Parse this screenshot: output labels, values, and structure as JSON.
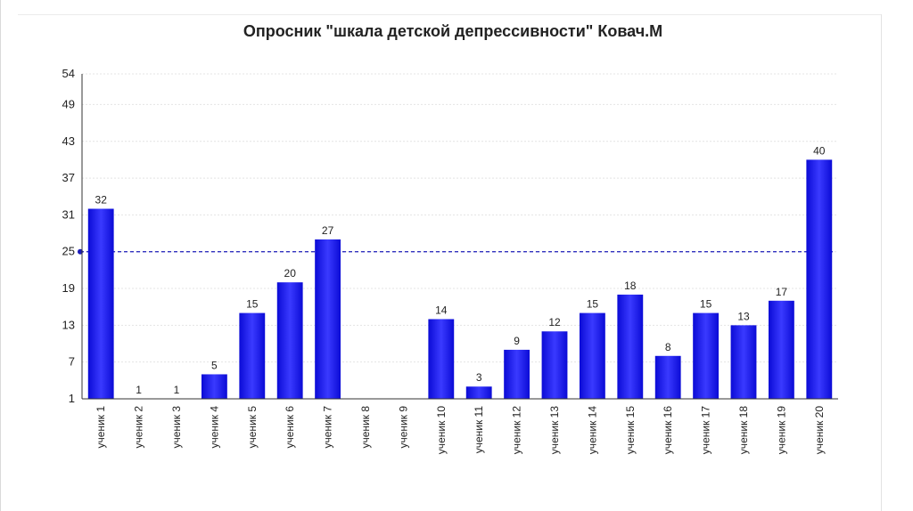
{
  "chart_data": {
    "type": "bar",
    "title": "Опросник \"шкала детской депрессивности\" Ковач.М",
    "categories": [
      "ученик 1",
      "ученик 2",
      "ученик 3",
      "ученик 4",
      "ученик 5",
      "ученик 6",
      "ученик 7",
      "ученик 8",
      "ученик 9",
      "ученик 10",
      "ученик 11",
      "ученик 12",
      "ученик 13",
      "ученик 14",
      "ученик 15",
      "ученик 16",
      "ученик 17",
      "ученик 18",
      "ученик 19",
      "ученик 20"
    ],
    "values": [
      32,
      1,
      1,
      5,
      15,
      20,
      27,
      null,
      null,
      14,
      3,
      9,
      12,
      15,
      18,
      8,
      15,
      13,
      17,
      40
    ],
    "data_labels": [
      "32",
      "1",
      "1",
      "5",
      "15",
      "20",
      "27",
      "",
      "",
      "14",
      "3",
      "9",
      "12",
      "15",
      "18",
      "8",
      "15",
      "13",
      "17",
      "40"
    ],
    "y_ticks": [
      "1",
      "7",
      "13",
      "19",
      "25",
      "31",
      "37",
      "43",
      "49",
      "54"
    ],
    "ylim": [
      1,
      54
    ],
    "reference_line": 25,
    "grid": true,
    "bar_color": "#0b0bd6",
    "bar_highlight_color": "#3a3aff",
    "reference_line_color": "#1a1ab8",
    "axis_color": "#333333"
  }
}
